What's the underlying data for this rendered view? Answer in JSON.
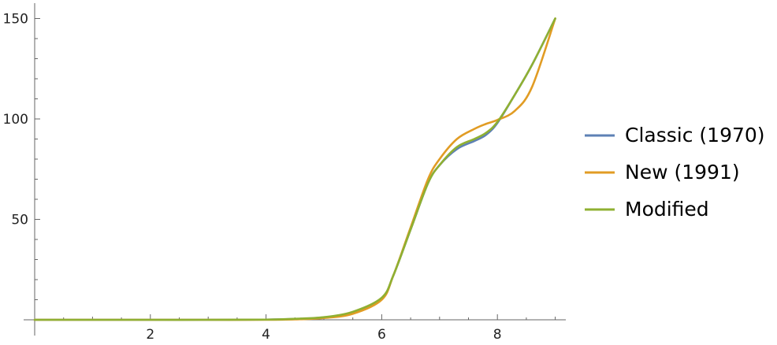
{
  "chart_data": {
    "type": "line",
    "title": "",
    "xlabel": "",
    "ylabel": "",
    "xlim": [
      0,
      9.25
    ],
    "ylim": [
      -5,
      155
    ],
    "x_ticks": [
      2,
      4,
      6,
      8
    ],
    "y_ticks": [
      50,
      100,
      150
    ],
    "x_tick_labels": [
      "2",
      "4",
      "6",
      "8"
    ],
    "y_tick_labels": [
      "50",
      "100",
      "150"
    ],
    "grid": false,
    "legend_position": "right",
    "series": [
      {
        "name": "Classic (1970)",
        "color": "#5e81b5",
        "x": [
          0,
          1,
          2,
          3,
          4,
          4.5,
          5,
          5.5,
          6,
          6.2,
          6.5,
          6.8,
          7,
          7.3,
          7.6,
          7.8,
          8,
          8.3,
          8.6,
          9
        ],
        "y": [
          0,
          0,
          0,
          0,
          0.1,
          0.4,
          1.2,
          3.5,
          10.5,
          22,
          45,
          68,
          77,
          85,
          89,
          92,
          98,
          112,
          127,
          150
        ]
      },
      {
        "name": "New (1991)",
        "color": "#e19c24",
        "x": [
          0,
          1,
          2,
          3,
          4,
          4.5,
          5,
          5.5,
          6,
          6.2,
          6.5,
          6.8,
          7,
          7.3,
          7.6,
          7.8,
          8,
          8.3,
          8.6,
          9
        ],
        "y": [
          0,
          0,
          0,
          0,
          0,
          0.2,
          0.9,
          3.0,
          10,
          22,
          46,
          70,
          80,
          90,
          95,
          97.5,
          99.5,
          104,
          116,
          150
        ]
      },
      {
        "name": "Modified",
        "color": "#8fb032",
        "x": [
          0,
          1,
          2,
          3,
          4,
          4.5,
          5,
          5.5,
          6,
          6.2,
          6.5,
          6.8,
          7,
          7.3,
          7.6,
          7.8,
          8,
          8.3,
          8.6,
          9
        ],
        "y": [
          0,
          0,
          0,
          0,
          0.1,
          0.5,
          1.3,
          4.0,
          11,
          22,
          45,
          68,
          77,
          86,
          90,
          93,
          98.5,
          112,
          127,
          150
        ]
      }
    ]
  }
}
